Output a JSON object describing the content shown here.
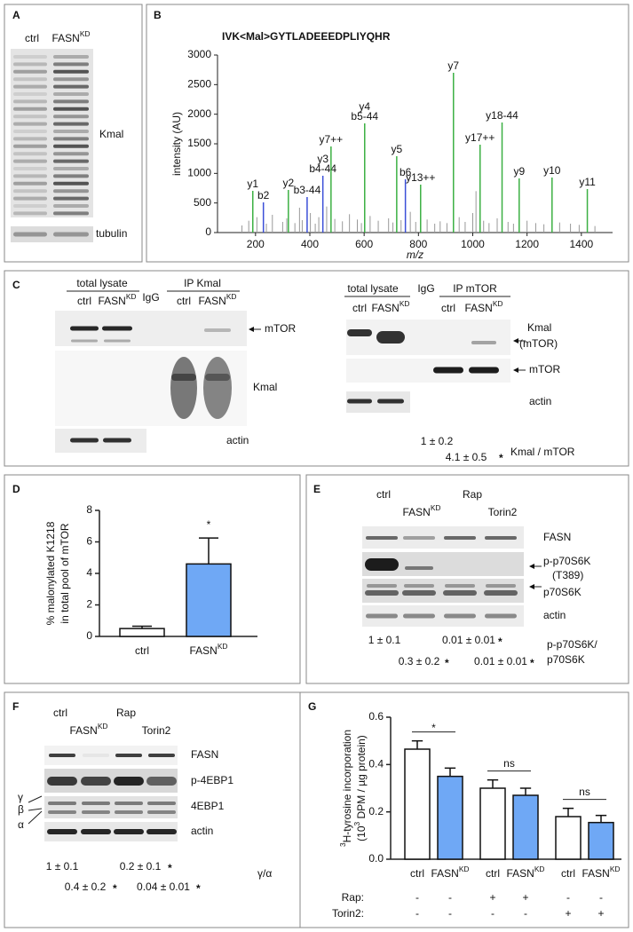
{
  "panels": {
    "a": {
      "letter": "A",
      "lanes": [
        [
          "ctrl"
        ],
        [
          "FASN",
          {
            "sup": "KD"
          }
        ]
      ],
      "bands": [
        "Kmal",
        "tubulin"
      ]
    },
    "b": {
      "letter": "B"
    },
    "c": {
      "letter": "C",
      "left": {
        "groups": [
          "total lysate",
          "IgG",
          "IP Kmal"
        ],
        "lanes": [
          [
            "ctrl"
          ],
          [
            "FASN",
            {
              "sup": "KD"
            }
          ],
          [
            "ctrl"
          ],
          [
            "FASN",
            {
              "sup": "KD"
            }
          ]
        ],
        "bands": [
          "mTOR",
          "Kmal",
          "actin"
        ]
      },
      "right": {
        "groups": [
          "total lysate",
          "IgG",
          "IP mTOR"
        ],
        "lanes": [
          [
            "ctrl"
          ],
          [
            "FASN",
            {
              "sup": "KD"
            }
          ],
          [
            "ctrl"
          ],
          [
            "FASN",
            {
              "sup": "KD"
            }
          ]
        ],
        "bands": [
          [
            "Kmal",
            "(mTOR)"
          ],
          "mTOR",
          "actin"
        ],
        "quant": [
          "1 ± 0.2",
          "4.1 ± 0.5"
        ],
        "star": "*",
        "ratio": "Kmal / mTOR"
      }
    },
    "d": {
      "letter": "D"
    },
    "e": {
      "letter": "E",
      "lanes": [
        [
          "ctrl"
        ],
        [
          "FASN",
          {
            "sup": "KD"
          }
        ],
        [
          "Rap"
        ],
        [
          "Torin2"
        ]
      ],
      "bands": [
        "FASN",
        [
          "p-p70S6K",
          "(T389)"
        ],
        "p70S6K",
        "actin"
      ],
      "quant": [
        "1 ± 0.1",
        "0.01 ± 0.01",
        "0.3 ± 0.2",
        "0.01 ± 0.01"
      ],
      "star": "*",
      "ratio": [
        "p-p70S6K/",
        "p70S6K"
      ]
    },
    "f": {
      "letter": "F",
      "lanes": [
        [
          "ctrl"
        ],
        [
          "FASN",
          {
            "sup": "KD"
          }
        ],
        [
          "Rap"
        ],
        [
          "Torin2"
        ]
      ],
      "bands": [
        "FASN",
        "p-4EBP1",
        "4EBP1",
        "actin"
      ],
      "isoforms": [
        "γ",
        "β",
        "α"
      ],
      "quant": [
        "1 ± 0.1",
        "0.2 ± 0.1",
        "0.4 ± 0.2",
        "0.04 ± 0.01"
      ],
      "star": "*",
      "ratio": "γ/α"
    },
    "g": {
      "letter": "G"
    }
  },
  "chart_data": [
    {
      "type": "spectrum",
      "sequence": "IVK<Mal>GYTLADEEEDPLIYQHR",
      "xlabel": "m/z",
      "ylabel": "intensity (AU)",
      "xlim": [
        60,
        1515
      ],
      "ylim": [
        0,
        3000
      ],
      "xticks": [
        200,
        400,
        600,
        800,
        1000,
        1200,
        1400
      ],
      "yticks": [
        0,
        500,
        1000,
        1500,
        2000,
        2500,
        3000
      ],
      "peaks": {
        "x": [
          190,
          229,
          321,
          390,
          448,
          478,
          602,
          720,
          752,
          808,
          929,
          1027,
          1108,
          1171,
          1292,
          1422
        ],
        "values": [
          705,
          510,
          720,
          600,
          960,
          1455,
          1845,
          1290,
          900,
          810,
          2700,
          1485,
          1860,
          915,
          930,
          735
        ],
        "colors": [
          "#3cb043",
          "#3b4fd8",
          "#3cb043",
          "#3b4fd8",
          "#3b4fd8",
          "#3cb043",
          "#3cb043",
          "#3cb043",
          "#3b4fd8",
          "#3cb043",
          "#3cb043",
          "#3cb043",
          "#3cb043",
          "#3cb043",
          "#3cb043",
          "#3cb043"
        ],
        "labels": [
          [
            "y1"
          ],
          [
            "b2"
          ],
          [
            "y2"
          ],
          [
            "b3-44"
          ],
          [
            "y3",
            "b4-44"
          ],
          [
            "y7++"
          ],
          [
            "y4",
            "b5-44"
          ],
          [
            "y5"
          ],
          [
            "b6"
          ],
          [
            "y13++"
          ],
          [
            "y7"
          ],
          [
            "y17++"
          ],
          [
            "y18-44"
          ],
          [
            "y9"
          ],
          [
            "y10"
          ],
          [
            "y11"
          ]
        ]
      },
      "background": {
        "color": "#999999",
        "x": [
          150,
          175,
          205,
          240,
          262,
          300,
          315,
          345,
          362,
          372,
          402,
          420,
          433,
          462,
          492,
          520,
          546,
          575,
          590,
          622,
          652,
          690,
          706,
          736,
          770,
          790,
          832,
          860,
          880,
          905,
          950,
          972,
          1000,
          1012,
          1040,
          1060,
          1090,
          1130,
          1150,
          1200,
          1232,
          1262,
          1320,
          1360,
          1392,
          1450
        ],
        "values": [
          120,
          200,
          260,
          150,
          300,
          180,
          240,
          160,
          420,
          210,
          330,
          150,
          260,
          440,
          230,
          190,
          310,
          220,
          160,
          280,
          200,
          240,
          170,
          210,
          350,
          180,
          220,
          150,
          190,
          160,
          260,
          180,
          330,
          700,
          200,
          160,
          240,
          180,
          150,
          200,
          160,
          140,
          170,
          150,
          130,
          110
        ]
      }
    },
    {
      "type": "bar",
      "ylabel": [
        "% malonylated K1218",
        "in total pool of mTOR"
      ],
      "categories": [
        [
          "ctrl"
        ],
        [
          "FASN",
          {
            "sup": "KD"
          }
        ]
      ],
      "values": [
        0.5,
        4.6
      ],
      "errors": [
        0.15,
        1.65
      ],
      "colors": [
        "#ffffff",
        "#6fa8f5"
      ],
      "ylim": [
        0,
        8
      ],
      "yticks": [
        0,
        2,
        4,
        6,
        8
      ],
      "annotations": [
        {
          "text": "*",
          "bars": [
            1
          ]
        }
      ]
    },
    {
      "type": "bar",
      "ylabel": [
        [
          {
            "sup": "3"
          },
          "H-tyrosine incorporation"
        ],
        [
          "(10",
          {
            "sup": "3"
          },
          " DPM / µg protein)"
        ]
      ],
      "categories": [
        [
          "ctrl"
        ],
        [
          "FASN",
          {
            "sup": "KD"
          }
        ],
        [
          "ctrl"
        ],
        [
          "FASN",
          {
            "sup": "KD"
          }
        ],
        [
          "ctrl"
        ],
        [
          "FASN",
          {
            "sup": "KD"
          }
        ]
      ],
      "values": [
        0.465,
        0.35,
        0.3,
        0.27,
        0.18,
        0.155
      ],
      "errors": [
        0.035,
        0.035,
        0.035,
        0.03,
        0.035,
        0.03
      ],
      "colors": [
        "#ffffff",
        "#6fa8f5",
        "#ffffff",
        "#6fa8f5",
        "#ffffff",
        "#6fa8f5"
      ],
      "ylim": [
        0,
        0.6
      ],
      "yticks": [
        {
          "value": 0,
          "label": "0.0"
        },
        0.2,
        0.4,
        0.6
      ],
      "annotations": [
        {
          "text": "*",
          "bars": [
            0,
            1
          ]
        },
        {
          "text": "ns",
          "bars": [
            2,
            3
          ]
        },
        {
          "text": "ns",
          "bars": [
            4,
            5
          ]
        }
      ],
      "treatments": [
        {
          "name": "Rap:",
          "marks": [
            "-",
            "-",
            "+",
            "+",
            "-",
            "-"
          ]
        },
        {
          "name": "Torin2:",
          "marks": [
            "-",
            "-",
            "-",
            "-",
            "+",
            "+"
          ]
        }
      ]
    }
  ]
}
